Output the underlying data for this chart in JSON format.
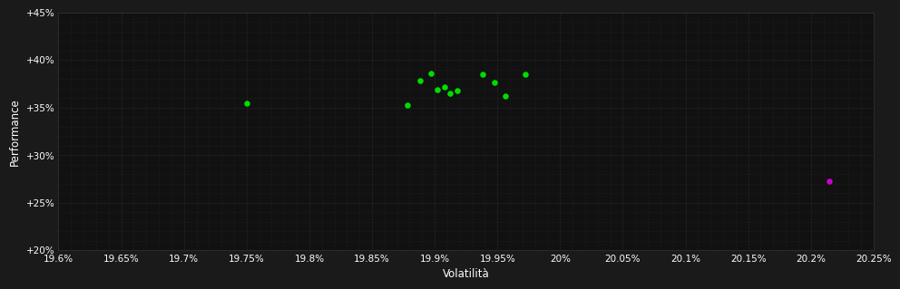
{
  "background_color": "#1a1a1a",
  "plot_bg_color": "#111111",
  "grid_color": "#333333",
  "text_color": "#ffffff",
  "xlabel": "Volatilità",
  "ylabel": "Performance",
  "xlim": [
    19.6,
    20.25
  ],
  "ylim": [
    20.0,
    45.0
  ],
  "xticks": [
    19.6,
    19.65,
    19.7,
    19.75,
    19.8,
    19.85,
    19.9,
    19.95,
    20.0,
    20.05,
    20.1,
    20.15,
    20.2,
    20.25
  ],
  "xtick_labels": [
    "19.6%",
    "19.65%",
    "19.7%",
    "19.75%",
    "19.8%",
    "19.85%",
    "19.9%",
    "19.95%",
    "20%",
    "20.05%",
    "20.1%",
    "20.15%",
    "20.2%",
    "20.25%"
  ],
  "yticks": [
    20,
    25,
    30,
    35,
    40,
    45
  ],
  "ytick_labels": [
    "+20%",
    "+25%",
    "+30%",
    "+35%",
    "+40%",
    "+45%"
  ],
  "minor_xticks_count": 5,
  "green_points": [
    [
      19.75,
      35.5
    ],
    [
      19.878,
      35.3
    ],
    [
      19.888,
      37.8
    ],
    [
      19.897,
      38.6
    ],
    [
      19.902,
      36.9
    ],
    [
      19.908,
      37.2
    ],
    [
      19.912,
      36.5
    ],
    [
      19.918,
      36.8
    ],
    [
      19.938,
      38.5
    ],
    [
      19.948,
      37.6
    ],
    [
      19.956,
      36.2
    ],
    [
      19.972,
      38.5
    ]
  ],
  "magenta_points": [
    [
      20.215,
      27.3
    ]
  ],
  "green_color": "#00dd00",
  "magenta_color": "#cc00cc",
  "point_size": 22,
  "font_size_ticks": 7.5,
  "font_size_labels": 8.5
}
